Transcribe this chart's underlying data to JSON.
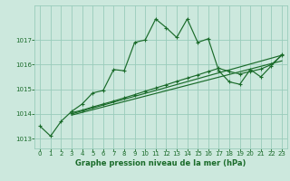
{
  "background_color": "#cce8dd",
  "grid_color": "#99ccbb",
  "line_color": "#1a6b2a",
  "xlabel": "Graphe pression niveau de la mer (hPa)",
  "xlim": [
    -0.5,
    23.5
  ],
  "ylim": [
    1012.6,
    1018.4
  ],
  "yticks": [
    1013,
    1014,
    1015,
    1016,
    1017
  ],
  "xticks": [
    0,
    1,
    2,
    3,
    4,
    5,
    6,
    7,
    8,
    9,
    10,
    11,
    12,
    13,
    14,
    15,
    16,
    17,
    18,
    19,
    20,
    21,
    22,
    23
  ],
  "series1_x": [
    0,
    1,
    2,
    3,
    4,
    5,
    6,
    7,
    8,
    9,
    10,
    11,
    12,
    13,
    14,
    15,
    16,
    17,
    18,
    19,
    20,
    21,
    22,
    23
  ],
  "series1_y": [
    1013.5,
    1013.1,
    1013.7,
    1014.1,
    1014.4,
    1014.85,
    1014.95,
    1015.8,
    1015.75,
    1016.9,
    1017.0,
    1017.85,
    1017.5,
    1017.1,
    1017.85,
    1016.9,
    1017.05,
    1015.75,
    1015.3,
    1015.2,
    1015.8,
    1015.5,
    1015.95,
    1016.4
  ],
  "series2_x": [
    3,
    4,
    5,
    6,
    7,
    8,
    9,
    10,
    11,
    12,
    13,
    14,
    15,
    16,
    17,
    18,
    19,
    20,
    21,
    22,
    23
  ],
  "series2_y": [
    1014.05,
    1014.15,
    1014.28,
    1014.4,
    1014.52,
    1014.65,
    1014.78,
    1014.92,
    1015.05,
    1015.18,
    1015.32,
    1015.45,
    1015.58,
    1015.72,
    1015.85,
    1015.72,
    1015.62,
    1015.72,
    1015.82,
    1016.0,
    1016.38
  ],
  "series3_x": [
    3,
    23
  ],
  "series3_y": [
    1014.0,
    1016.38
  ],
  "series4_x": [
    3,
    23
  ],
  "series4_y": [
    1013.95,
    1016.15
  ]
}
